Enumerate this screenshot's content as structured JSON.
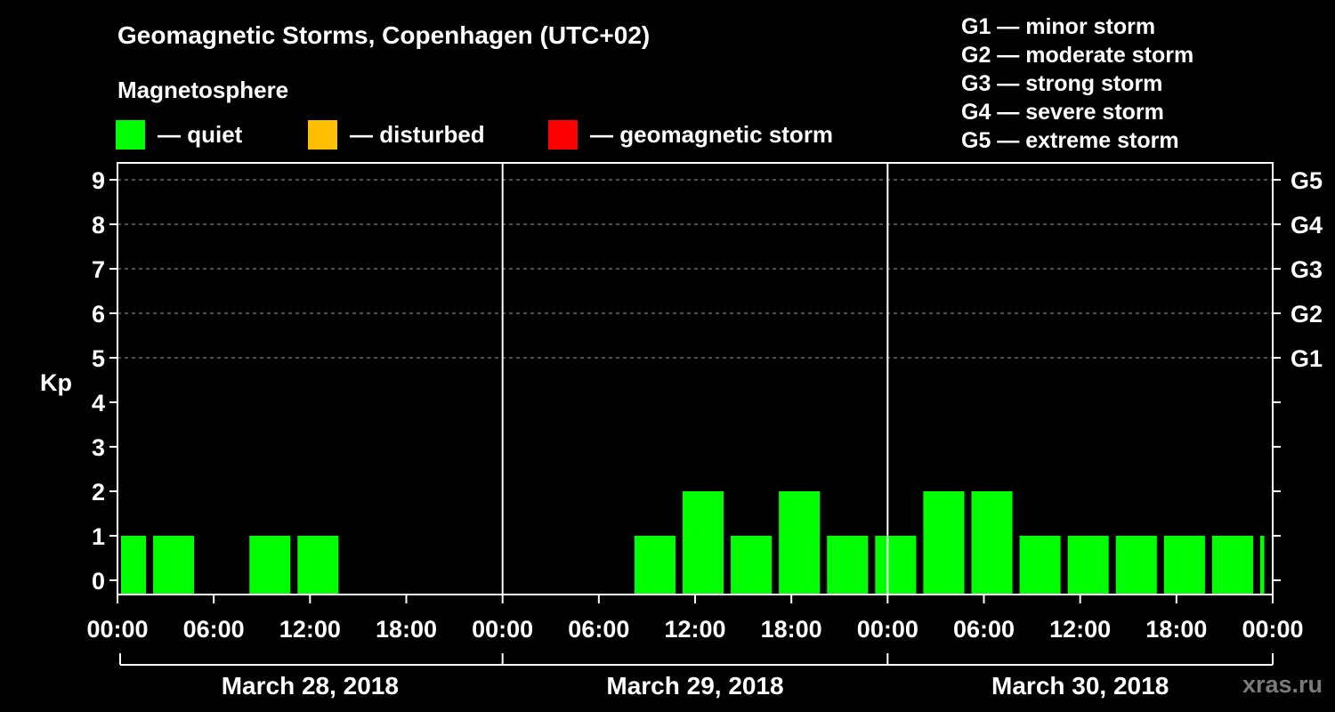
{
  "title": "Geomagnetic Storms, Copenhagen (UTC+02)",
  "subtitle": "Magnetosphere",
  "legend": [
    {
      "label": "— quiet",
      "color": "#00ff00"
    },
    {
      "label": "— disturbed",
      "color": "#ffbf00"
    },
    {
      "label": "— geomagnetic storm",
      "color": "#ff0000"
    }
  ],
  "storm_scale": [
    "G1 — minor storm",
    "G2 — moderate storm",
    "G3 — strong storm",
    "G4 — severe storm",
    "G5 — extreme storm"
  ],
  "watermark": "xras.ru",
  "chart_data": {
    "type": "bar",
    "title": "Geomagnetic Storms, Copenhagen (UTC+02)",
    "ylabel": "Kp",
    "ylim": [
      0,
      9
    ],
    "yticks": [
      "0",
      "1",
      "2",
      "3",
      "4",
      "5",
      "6",
      "7",
      "8",
      "9"
    ],
    "right_ticks": [
      {
        "value": 5,
        "label": "G1"
      },
      {
        "value": 6,
        "label": "G2"
      },
      {
        "value": 7,
        "label": "G3"
      },
      {
        "value": 8,
        "label": "G4"
      },
      {
        "value": 9,
        "label": "G5"
      }
    ],
    "xlim_hours": [
      0,
      72
    ],
    "xtick_labels": [
      "00:00",
      "06:00",
      "12:00",
      "18:00",
      "00:00",
      "06:00",
      "12:00",
      "18:00",
      "00:00",
      "06:00",
      "12:00",
      "18:00",
      "00:00"
    ],
    "days": [
      "March 28, 2018",
      "March 29, 2018",
      "March 30, 2018"
    ],
    "bar_color": "#00ff00",
    "grid": "dashed horizontal at Kp 5-9",
    "bars": [
      {
        "start": 0,
        "end": 2,
        "kp": 1
      },
      {
        "start": 2,
        "end": 5,
        "kp": 1
      },
      {
        "start": 5,
        "end": 8,
        "kp": 0
      },
      {
        "start": 8,
        "end": 11,
        "kp": 1
      },
      {
        "start": 11,
        "end": 14,
        "kp": 1
      },
      {
        "start": 14,
        "end": 17,
        "kp": 0
      },
      {
        "start": 17,
        "end": 20,
        "kp": 0
      },
      {
        "start": 20,
        "end": 23,
        "kp": 0
      },
      {
        "start": 23,
        "end": 26,
        "kp": 0
      },
      {
        "start": 26,
        "end": 29,
        "kp": 0
      },
      {
        "start": 29,
        "end": 32,
        "kp": 0
      },
      {
        "start": 32,
        "end": 35,
        "kp": 1
      },
      {
        "start": 35,
        "end": 38,
        "kp": 2
      },
      {
        "start": 38,
        "end": 41,
        "kp": 1
      },
      {
        "start": 41,
        "end": 44,
        "kp": 2
      },
      {
        "start": 44,
        "end": 47,
        "kp": 1
      },
      {
        "start": 47,
        "end": 50,
        "kp": 1
      },
      {
        "start": 50,
        "end": 53,
        "kp": 2
      },
      {
        "start": 53,
        "end": 56,
        "kp": 2
      },
      {
        "start": 56,
        "end": 59,
        "kp": 1
      },
      {
        "start": 59,
        "end": 62,
        "kp": 1
      },
      {
        "start": 62,
        "end": 65,
        "kp": 1
      },
      {
        "start": 65,
        "end": 68,
        "kp": 1
      },
      {
        "start": 68,
        "end": 71,
        "kp": 1
      },
      {
        "start": 71,
        "end": 71.7,
        "kp": 1
      }
    ]
  }
}
